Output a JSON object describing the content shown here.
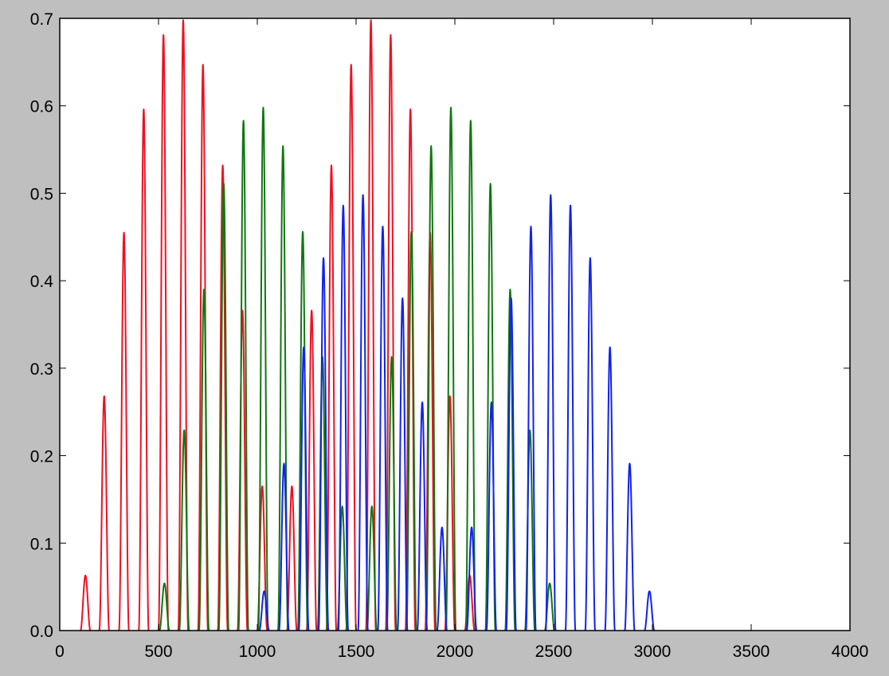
{
  "chart_data": {
    "type": "line",
    "title": "",
    "xlabel": "",
    "ylabel": "",
    "xlim": [
      0,
      4000
    ],
    "ylim": [
      0,
      0.7
    ],
    "x_ticks": [
      0,
      500,
      1000,
      1500,
      2000,
      2500,
      3000,
      3500,
      4000
    ],
    "y_ticks": [
      0.0,
      0.1,
      0.2,
      0.3,
      0.4,
      0.5,
      0.6,
      0.7
    ],
    "x_tick_labels": [
      "0",
      "500",
      "1000",
      "1500",
      "2000",
      "2500",
      "3000",
      "3500",
      "4000"
    ],
    "y_tick_labels": [
      "0.0",
      "0.1",
      "0.2",
      "0.3",
      "0.4",
      "0.5",
      "0.6",
      "0.7"
    ],
    "grid": false,
    "legend": "none",
    "series": [
      {
        "color": "#ee1122",
        "peaks": [
          {
            "x": 130,
            "y": 0.063
          },
          {
            "x": 225,
            "y": 0.268
          },
          {
            "x": 325,
            "y": 0.455
          },
          {
            "x": 425,
            "y": 0.596
          },
          {
            "x": 525,
            "y": 0.681
          },
          {
            "x": 625,
            "y": 0.698
          },
          {
            "x": 725,
            "y": 0.647
          },
          {
            "x": 825,
            "y": 0.532
          },
          {
            "x": 925,
            "y": 0.366
          },
          {
            "x": 1025,
            "y": 0.165
          },
          {
            "x": 1175,
            "y": 0.165
          },
          {
            "x": 1275,
            "y": 0.366
          },
          {
            "x": 1375,
            "y": 0.532
          },
          {
            "x": 1475,
            "y": 0.647
          },
          {
            "x": 1575,
            "y": 0.698
          },
          {
            "x": 1675,
            "y": 0.681
          },
          {
            "x": 1775,
            "y": 0.596
          },
          {
            "x": 1875,
            "y": 0.455
          },
          {
            "x": 1975,
            "y": 0.268
          },
          {
            "x": 2075,
            "y": 0.063
          }
        ]
      },
      {
        "color": "#117711",
        "peaks": [
          {
            "x": 530,
            "y": 0.054
          },
          {
            "x": 630,
            "y": 0.229
          },
          {
            "x": 730,
            "y": 0.39
          },
          {
            "x": 830,
            "y": 0.511
          },
          {
            "x": 930,
            "y": 0.583
          },
          {
            "x": 1030,
            "y": 0.598
          },
          {
            "x": 1130,
            "y": 0.554
          },
          {
            "x": 1230,
            "y": 0.456
          },
          {
            "x": 1330,
            "y": 0.313
          },
          {
            "x": 1430,
            "y": 0.142
          },
          {
            "x": 1580,
            "y": 0.142
          },
          {
            "x": 1680,
            "y": 0.313
          },
          {
            "x": 1780,
            "y": 0.456
          },
          {
            "x": 1880,
            "y": 0.554
          },
          {
            "x": 1980,
            "y": 0.598
          },
          {
            "x": 2080,
            "y": 0.583
          },
          {
            "x": 2180,
            "y": 0.511
          },
          {
            "x": 2280,
            "y": 0.39
          },
          {
            "x": 2380,
            "y": 0.229
          },
          {
            "x": 2480,
            "y": 0.054
          }
        ]
      },
      {
        "color": "#1122ee",
        "peaks": [
          {
            "x": 1035,
            "y": 0.045
          },
          {
            "x": 1135,
            "y": 0.191
          },
          {
            "x": 1235,
            "y": 0.324
          },
          {
            "x": 1335,
            "y": 0.426
          },
          {
            "x": 1435,
            "y": 0.486
          },
          {
            "x": 1535,
            "y": 0.498
          },
          {
            "x": 1635,
            "y": 0.462
          },
          {
            "x": 1735,
            "y": 0.38
          },
          {
            "x": 1835,
            "y": 0.261
          },
          {
            "x": 1935,
            "y": 0.118
          },
          {
            "x": 2085,
            "y": 0.118
          },
          {
            "x": 2185,
            "y": 0.261
          },
          {
            "x": 2285,
            "y": 0.38
          },
          {
            "x": 2385,
            "y": 0.462
          },
          {
            "x": 2485,
            "y": 0.498
          },
          {
            "x": 2585,
            "y": 0.486
          },
          {
            "x": 2685,
            "y": 0.426
          },
          {
            "x": 2785,
            "y": 0.324
          },
          {
            "x": 2885,
            "y": 0.191
          },
          {
            "x": 2985,
            "y": 0.045
          }
        ]
      }
    ]
  }
}
